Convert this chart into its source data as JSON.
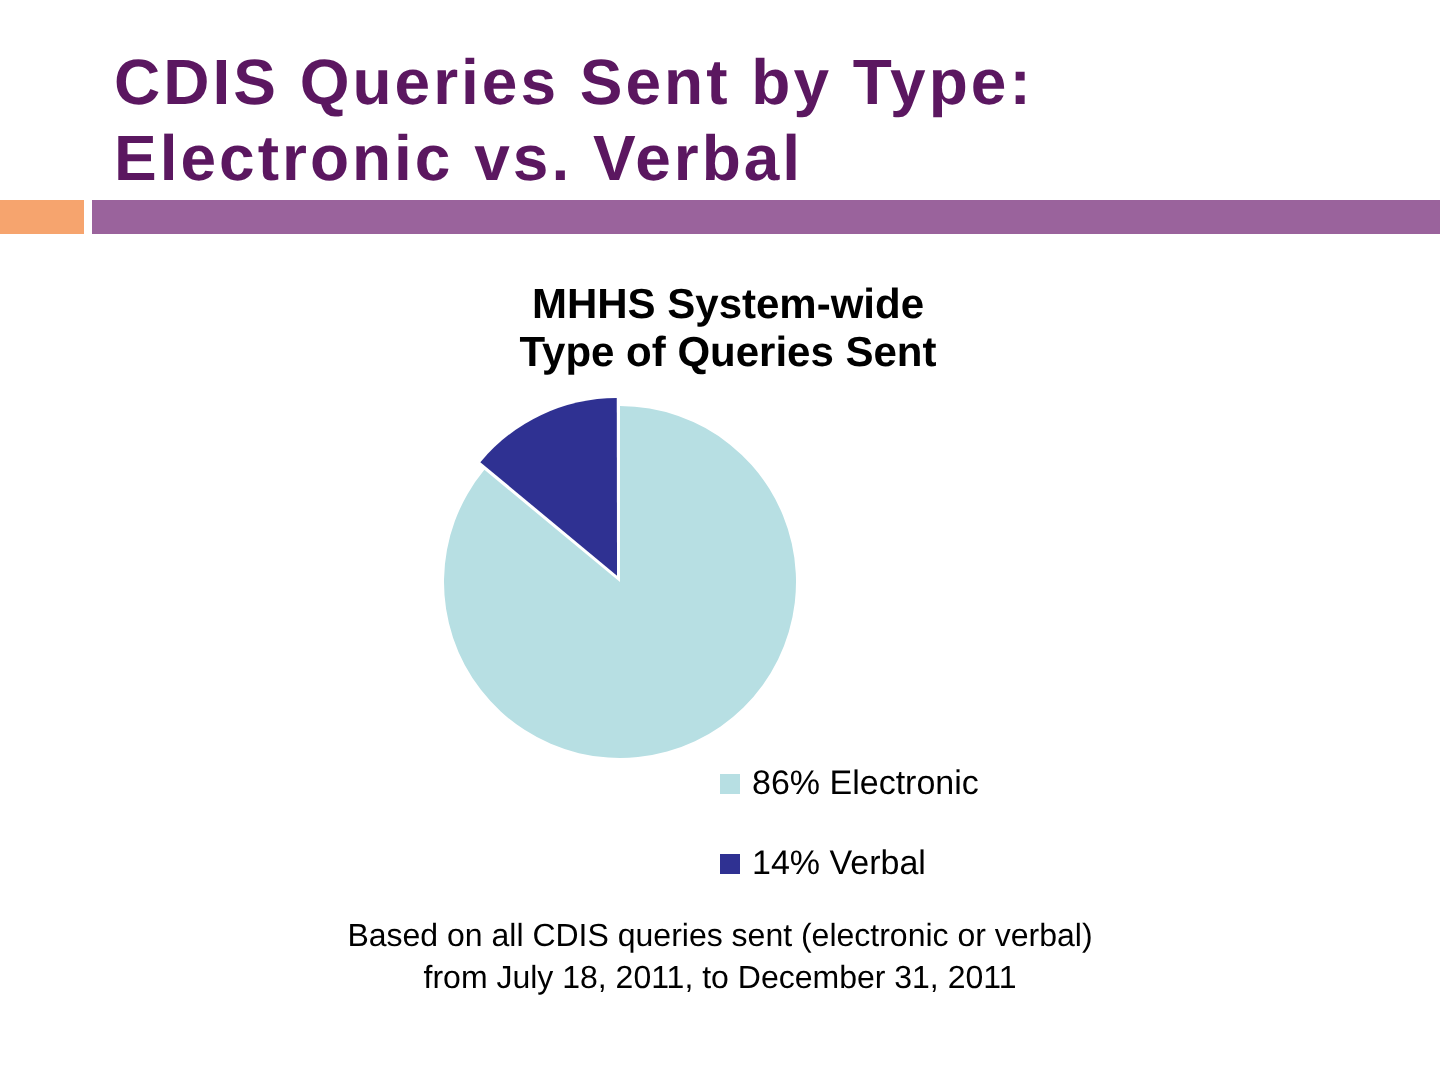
{
  "chart_data": {
    "type": "pie",
    "title": "CDIS Queries Sent by Type: Electronic vs. Verbal",
    "subtitle": "MHHS System-wide Type of Queries Sent",
    "categories": [
      "86% Electronic",
      "14% Verbal"
    ],
    "values": [
      86,
      14
    ],
    "colors": [
      "#b7dfe3",
      "#2f3192"
    ],
    "legend": "bottom",
    "annotations": [
      "Based on all CDIS queries sent (electronic or verbal) from July 18, 2011, to December 31, 2011"
    ]
  }
}
